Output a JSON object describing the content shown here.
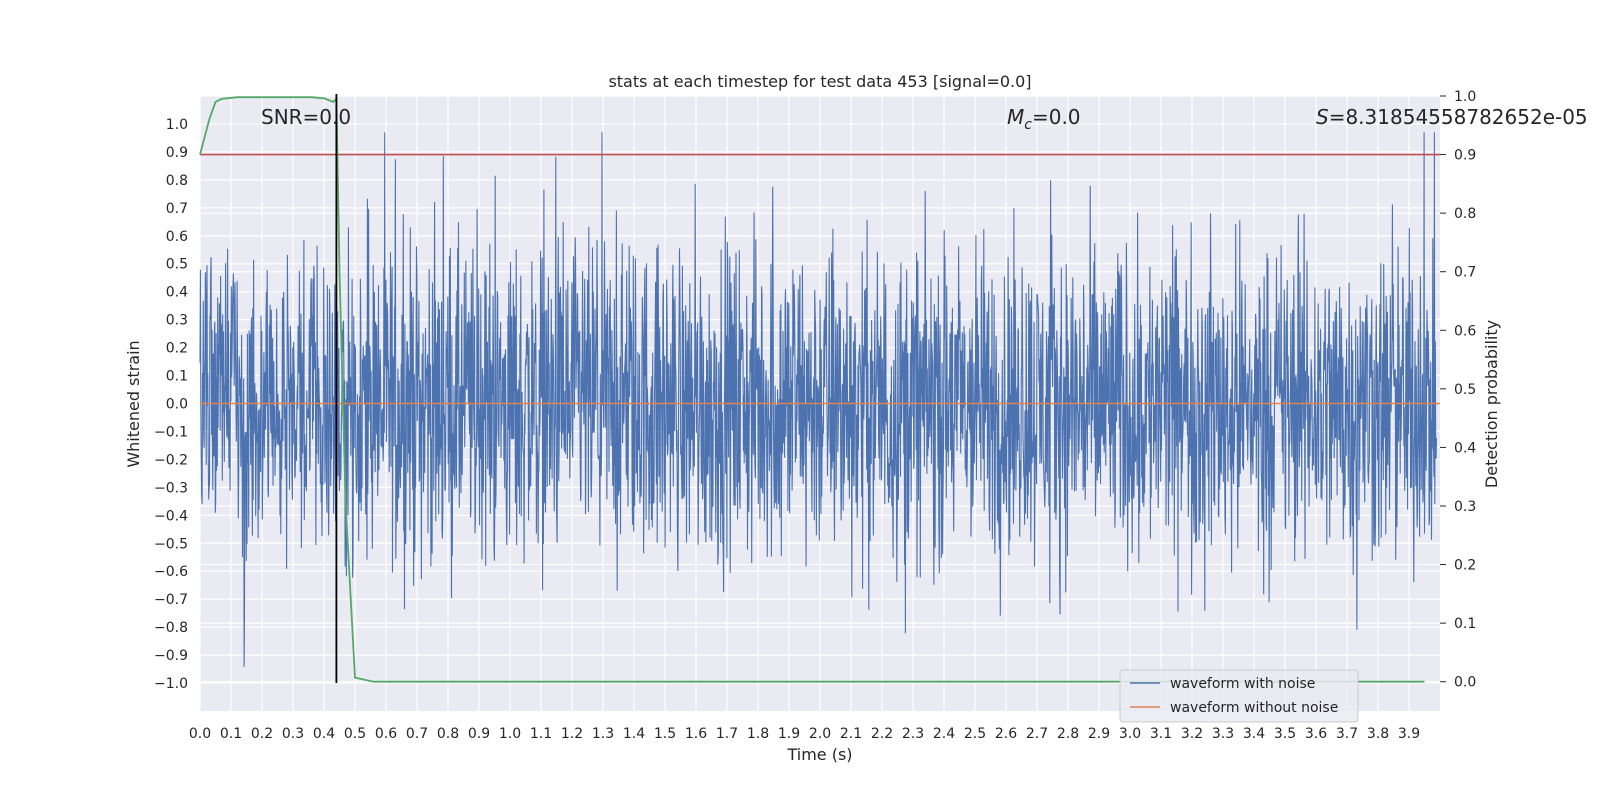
{
  "chart_data": {
    "type": "line",
    "title": "stats at each timestep for test data 453 [signal=0.0]",
    "xlabel": "Time (s)",
    "ylabel": "Whitened strain",
    "y2label": "Detection probability",
    "xlim": [
      0.0,
      4.0
    ],
    "ylim": [
      -1.1,
      1.1
    ],
    "y2lim": [
      -0.05,
      1.0
    ],
    "xticks": [
      "0.0",
      "0.1",
      "0.2",
      "0.3",
      "0.4",
      "0.5",
      "0.6",
      "0.7",
      "0.8",
      "0.9",
      "1.0",
      "1.1",
      "1.2",
      "1.3",
      "1.4",
      "1.5",
      "1.6",
      "1.7",
      "1.8",
      "1.9",
      "2.0",
      "2.1",
      "2.2",
      "2.3",
      "2.4",
      "2.5",
      "2.6",
      "2.7",
      "2.8",
      "2.9",
      "3.0",
      "3.1",
      "3.2",
      "3.3",
      "3.4",
      "3.5",
      "3.6",
      "3.7",
      "3.8",
      "3.9"
    ],
    "yticks": [
      "1.0",
      "0.9",
      "0.8",
      "0.7",
      "0.6",
      "0.5",
      "0.4",
      "0.3",
      "0.2",
      "0.1",
      "0.0",
      "-0.1",
      "-0.2",
      "-0.3",
      "-0.4",
      "-0.5",
      "-0.6",
      "-0.7",
      "-0.8",
      "-0.9",
      "-1.0"
    ],
    "y2ticks": [
      "1.0",
      "0.9",
      "0.8",
      "0.7",
      "0.6",
      "0.5",
      "0.4",
      "0.3",
      "0.2",
      "0.1",
      "0.0"
    ],
    "annotations": {
      "snr": "SNR=0.0",
      "mc_symbol": "M",
      "mc_sub": "c",
      "mc_value": "=0.0",
      "s_symbol": "S",
      "s_value": "=8.31854558782652e-05"
    },
    "threshold_probability": 0.9,
    "marker_time": 0.44,
    "series": [
      {
        "name": "waveform with noise",
        "color": "#4c72b0",
        "description": "whitened strain noise, roughly symmetric about 0 with spikes up to about 0.97 and down to about -1.0",
        "amplitude_range": [
          -1.0,
          0.97
        ]
      },
      {
        "name": "waveform without noise",
        "color": "#dd8452",
        "values_constant": 0.0
      },
      {
        "name": "detection probability",
        "color": "#55a868",
        "x": [
          0.0,
          0.03,
          0.05,
          0.07,
          0.12,
          0.2,
          0.3,
          0.36,
          0.4,
          0.43,
          0.44,
          0.45,
          0.47,
          0.5,
          0.56,
          0.6,
          1.0,
          2.0,
          3.0,
          3.95
        ],
        "y": [
          0.9,
          0.96,
          0.99,
          0.995,
          0.998,
          0.998,
          0.998,
          0.998,
          0.996,
          0.99,
          0.995,
          0.7,
          0.3,
          0.007,
          0.0,
          0.0,
          0.0,
          0.0,
          0.0,
          0.0
        ]
      }
    ],
    "legend": [
      "waveform with noise",
      "waveform without noise"
    ],
    "legend_placement": "bottom-right",
    "colors": {
      "background": "#eaeaf2",
      "grid": "#ffffff",
      "threshold": "#c44e52",
      "marker": "#000000"
    }
  }
}
